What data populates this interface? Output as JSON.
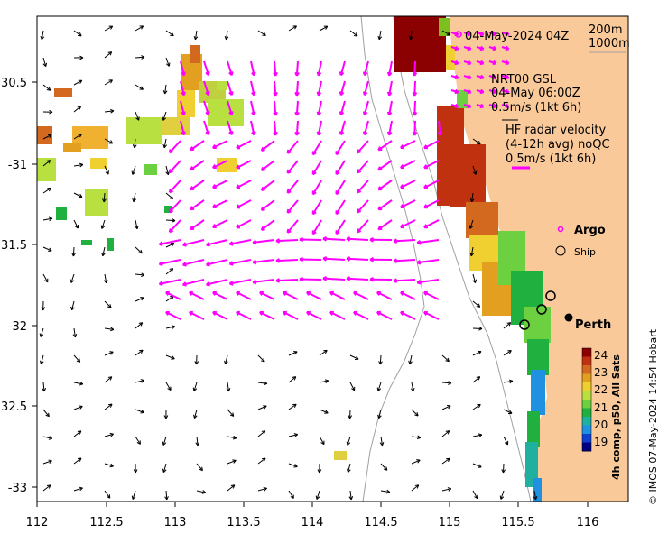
{
  "map": {
    "lon_ticks": [
      "112",
      "112.5",
      "113",
      "113.5",
      "114",
      "114.5",
      "115",
      "115.5",
      "116"
    ],
    "lat_ticks": [
      "30.5",
      "-31",
      "31.5",
      "-32",
      "32.5",
      "-33"
    ],
    "timestamp": "04-May-2024 04Z",
    "depth_contours": [
      "200m",
      "1000m"
    ],
    "model": {
      "name": "NRT00 GSL",
      "time": "04-May 06:00Z",
      "scale": "0.5m/s (1kt 6h)"
    },
    "hf_radar": {
      "title": "HF radar velocity",
      "subtitle": "(4-12h avg) noQC",
      "scale": "0.5m/s (1kt 6h)"
    },
    "legend": {
      "argo": "Argo",
      "ship": "Ship"
    },
    "city": "Perth",
    "colorbar": {
      "title": "4h comp, p50, All Sats",
      "ticks": [
        "24",
        "23",
        "22",
        "21",
        "20",
        "19"
      ],
      "colors": [
        "#8b0000",
        "#c0320f",
        "#d2691e",
        "#e3a020",
        "#f0d030",
        "#b8e040",
        "#6cd040",
        "#20b040",
        "#20b0a0",
        "#2090e0",
        "#1040d0",
        "#000080"
      ]
    },
    "credit": "© IMOS 07-May-2024 14:54 Hobart",
    "colors": {
      "land": "#f9c99a",
      "model_arrows": "#ff00ff",
      "hf_arrows": "#000000",
      "contours": "#999999"
    }
  }
}
